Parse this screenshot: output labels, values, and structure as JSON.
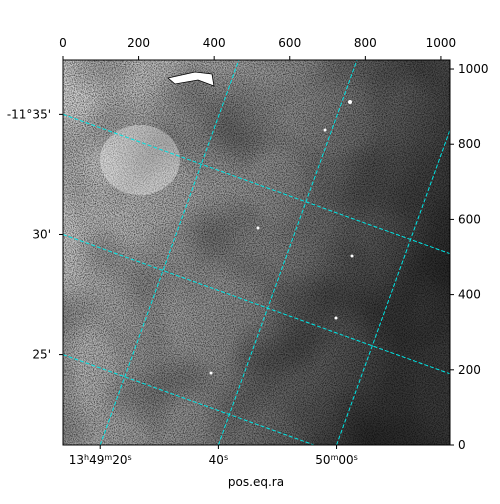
{
  "chart_data": {
    "type": "image",
    "xlabel": "pos.eq.ra",
    "xlim": [
      0,
      1024
    ],
    "xticks": [
      0,
      200,
      400,
      600,
      800,
      1000
    ],
    "ylim": [
      0,
      1024
    ],
    "yticks": [
      0,
      200,
      400,
      600,
      800,
      1000
    ],
    "ra_lim": [
      2953.7,
      3019.2
    ],
    "ra_ticks": [
      {
        "value": 2960,
        "label": "13h49m20s"
      },
      {
        "value": 2980,
        "label": "40s"
      },
      {
        "value": 3000,
        "label": "50m00s"
      }
    ],
    "dec_lim": [
      -11.354,
      -11.621
    ],
    "dec_ticks": [
      {
        "value": -11.5833,
        "label": "-11°35'"
      },
      {
        "value": -11.5,
        "label": "30'"
      },
      {
        "value": -11.4167,
        "label": "25'"
      }
    ],
    "grid": true,
    "grid_color": "#00e5e5"
  }
}
